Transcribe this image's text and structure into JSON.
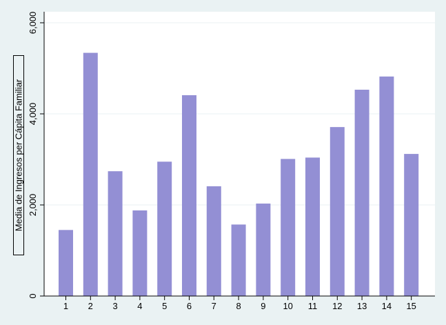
{
  "chart_data": {
    "type": "bar",
    "title": "",
    "xlabel": "",
    "ylabel": "Media de Ingresos per Cápita Familiar",
    "categories": [
      "1",
      "2",
      "3",
      "4",
      "5",
      "6",
      "7",
      "8",
      "9",
      "10",
      "11",
      "12",
      "13",
      "14",
      "15"
    ],
    "values": [
      1450,
      5340,
      2740,
      1880,
      2950,
      4410,
      2410,
      1570,
      2030,
      3010,
      3040,
      3710,
      4530,
      4820,
      3120
    ],
    "ylim": [
      0,
      6000
    ],
    "yticks": [
      0,
      2000,
      4000,
      6000
    ],
    "ytick_labels": [
      "0",
      "2,000",
      "4,000",
      "6,000"
    ],
    "grid": true,
    "legend": "none",
    "colors": {
      "bar": "#938fd4",
      "plot_background": "#ffffff",
      "outer_background": "#eaf2f3",
      "grid": "#eaf2f3",
      "axis": "#000000"
    }
  }
}
